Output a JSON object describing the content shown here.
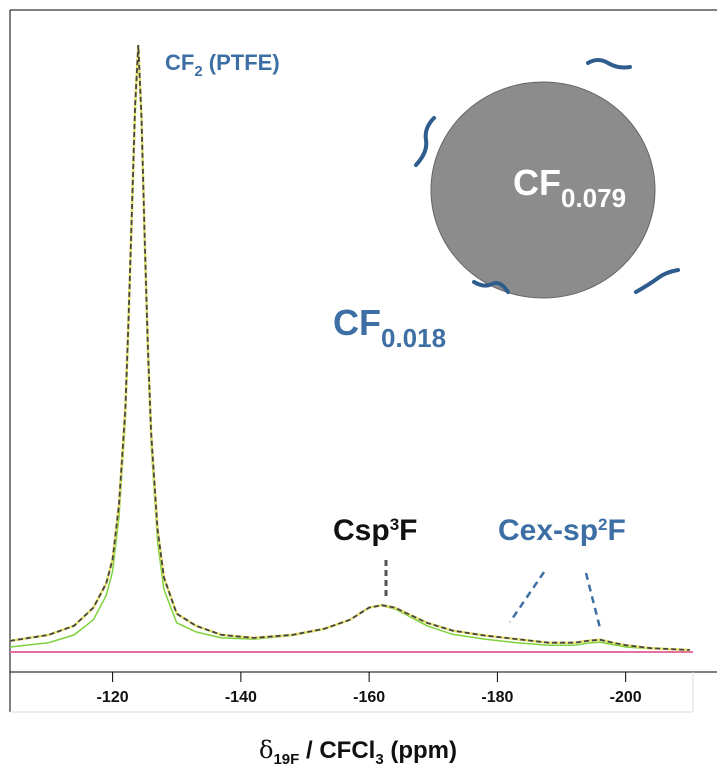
{
  "chart_data": {
    "type": "line",
    "x": [
      -104,
      -110,
      -114,
      -117,
      -119,
      -120,
      -121,
      -122,
      -122.5,
      -123,
      -123.5,
      -124,
      -124.5,
      -125,
      -125.5,
      -126,
      -127,
      -128,
      -130,
      -133,
      -137,
      -142,
      -148,
      -153,
      -157,
      -160,
      -162,
      -164,
      -166,
      -169,
      -173,
      -178,
      -183,
      -188,
      -192,
      -194,
      -196,
      -198,
      -200,
      -204,
      -210
    ],
    "series": [
      {
        "color": "#444444",
        "values": [
          1.5,
          2.5,
          4,
          7,
          11,
          15,
          24,
          40,
          55,
          72,
          90,
          100,
          88,
          68,
          50,
          36,
          20,
          12,
          6,
          4,
          2.5,
          2,
          2.5,
          3.5,
          5,
          7,
          7.4,
          7,
          6,
          4.5,
          3.2,
          2.4,
          1.8,
          1.2,
          1.2,
          1.5,
          1.7,
          1.2,
          0.8,
          0.3,
          0
        ]
      },
      {
        "color": "#7fd13b",
        "values": [
          0.5,
          1.2,
          2.5,
          5,
          9,
          13,
          22,
          38,
          53,
          70,
          88,
          99,
          87,
          66,
          48,
          34,
          18,
          10,
          4.5,
          3,
          2,
          1.8,
          2.4,
          3.4,
          5,
          7,
          7.3,
          6.8,
          5.7,
          4,
          2.6,
          1.8,
          1.2,
          0.8,
          0.8,
          1.1,
          1.3,
          0.9,
          0.5,
          0.2,
          0
        ]
      }
    ],
    "xlim": [
      -104,
      -210.5
    ],
    "ylim": [
      0,
      100
    ],
    "xticks": [
      -120,
      -140,
      -160,
      -180,
      -200
    ],
    "xlabel": {
      "symbol": "δ",
      "sub": "19F",
      "rest": " / CFCl",
      "sub2": "3",
      "end": " (ppm)"
    },
    "annotations": {
      "ptfe": {
        "text": "CF",
        "sub": "2",
        "after": " (PTFE)"
      },
      "core": {
        "text": "CF",
        "sub": "0.079"
      },
      "shell": {
        "text": "CF",
        "sub": "0.018"
      },
      "csp3": {
        "text": "Csp",
        "sup": "3",
        "after": "F"
      },
      "cex": {
        "text": "Cex-sp",
        "sup": "2",
        "after": "F"
      }
    }
  }
}
